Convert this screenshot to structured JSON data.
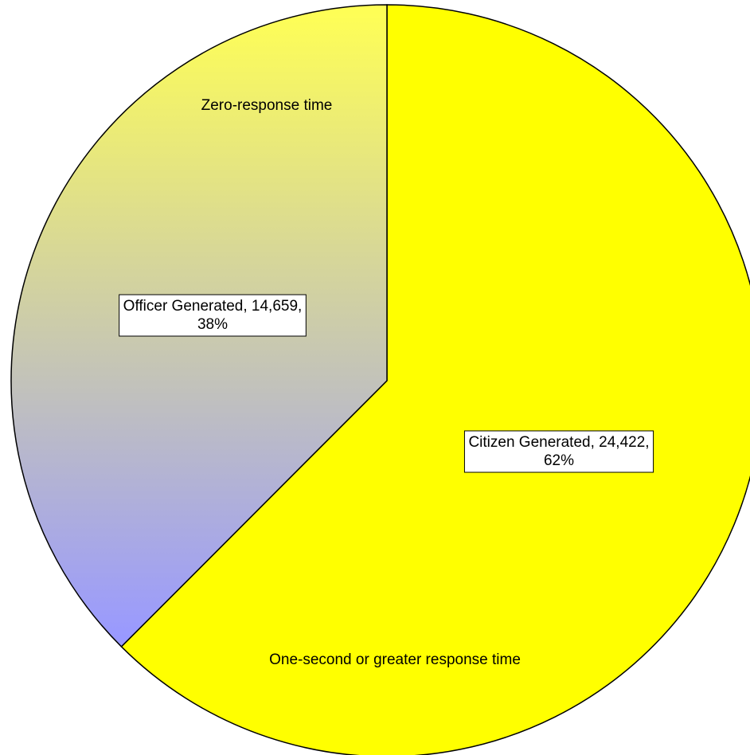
{
  "chart_data": {
    "type": "pie",
    "categories": [
      "Citizen Generated",
      "Officer Generated"
    ],
    "values": [
      24422,
      14659
    ],
    "value_labels": [
      "24,422",
      "14,659"
    ],
    "percent_labels": [
      "62%",
      "38%"
    ],
    "colors": [
      "#ffff00",
      "#9999ff"
    ],
    "gradient_top_color": "#ffff55",
    "annotations": [
      "Zero-response time",
      "One-second or greater response time"
    ]
  }
}
